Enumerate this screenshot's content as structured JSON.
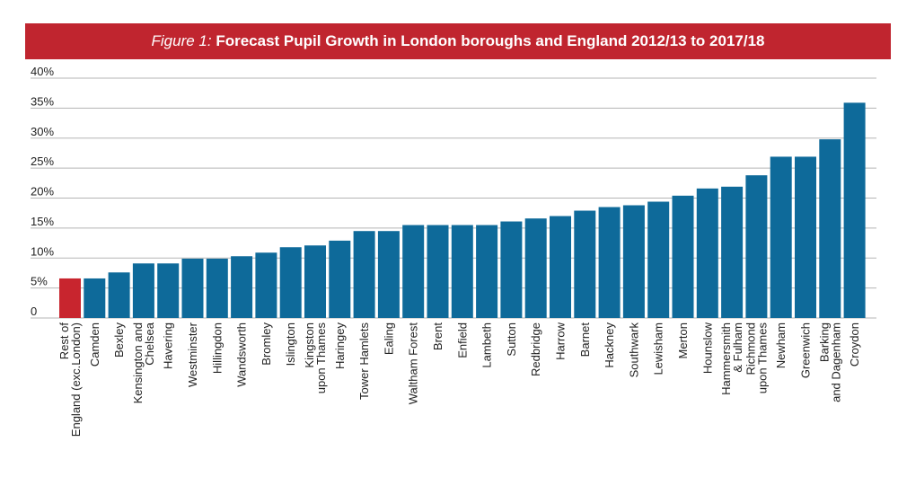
{
  "title": {
    "figure_label": "Figure 1:",
    "text": "Forecast Pupil Growth in London boroughs and England 2012/13 to 2017/18"
  },
  "colors": {
    "title_bar": "#c0252f",
    "bar": "#0e6a9a",
    "highlight_bar": "#c8252e",
    "grid": "#b5b5b5"
  },
  "chart_data": {
    "type": "bar",
    "title": "Forecast Pupil Growth in London boroughs and England 2012/13 to 2017/18",
    "xlabel": "",
    "ylabel": "",
    "ylim": [
      0,
      40
    ],
    "yticks": [
      "0",
      "5%",
      "10%",
      "15%",
      "20%",
      "25%",
      "30%",
      "35%",
      "40%"
    ],
    "grid": true,
    "legend": "none",
    "categories": [
      [
        "Rest of",
        "England (exc.London)"
      ],
      [
        "Camden"
      ],
      [
        "Bexley"
      ],
      [
        "Kensington and",
        "Chelsea"
      ],
      [
        "Havering"
      ],
      [
        "Westminster"
      ],
      [
        "Hillingdon"
      ],
      [
        "Wandsworth"
      ],
      [
        "Bromley"
      ],
      [
        "Islington"
      ],
      [
        "Kingston",
        "upon Thames"
      ],
      [
        "Haringey"
      ],
      [
        "Tower Hamlets"
      ],
      [
        "Ealing"
      ],
      [
        "Waltham Forest"
      ],
      [
        "Brent"
      ],
      [
        "Enfield"
      ],
      [
        "Lambeth"
      ],
      [
        "Sutton"
      ],
      [
        "Redbridge"
      ],
      [
        "Harrow"
      ],
      [
        "Barnet"
      ],
      [
        "Hackney"
      ],
      [
        "Southwark"
      ],
      [
        "Lewisham"
      ],
      [
        "Merton"
      ],
      [
        "Hounslow"
      ],
      [
        "Hammersmith",
        "& Fulham"
      ],
      [
        "Richmond",
        "upon Thames"
      ],
      [
        "Newham"
      ],
      [
        "Greenwich"
      ],
      [
        "Barking",
        "and Dagenham"
      ],
      [
        "Croydon"
      ]
    ],
    "values": [
      6.6,
      6.6,
      7.6,
      9.1,
      9.1,
      9.9,
      9.9,
      10.3,
      10.9,
      11.8,
      12.1,
      12.9,
      14.5,
      14.5,
      15.5,
      15.5,
      15.5,
      15.5,
      16.1,
      16.6,
      17.0,
      17.9,
      18.5,
      18.8,
      19.4,
      20.4,
      21.6,
      21.9,
      23.8,
      26.9,
      26.9,
      29.8,
      35.9
    ],
    "highlight_index": 0
  }
}
